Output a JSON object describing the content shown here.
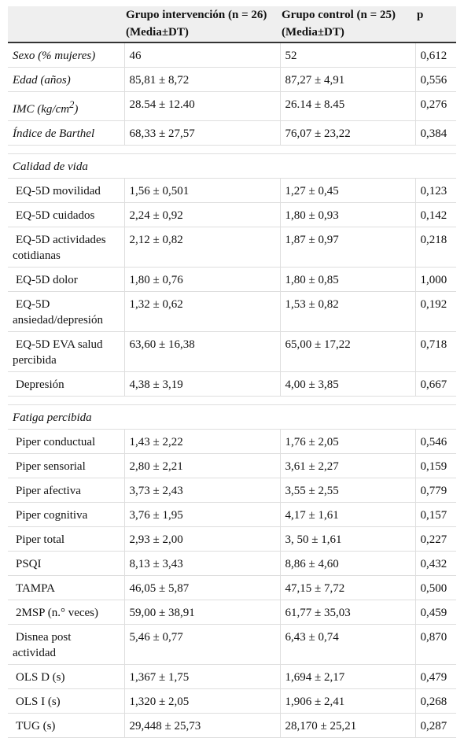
{
  "table": {
    "header": [
      [
        "Grupo intervención (n = 26)",
        "(Media±DT)"
      ],
      [
        "Grupo control (n = 25)",
        "(Media±DT)"
      ],
      [
        "p"
      ]
    ],
    "groups": [
      {
        "rows": [
          [
            "Sexo (% mujeres)",
            "46",
            "52",
            "0,612"
          ],
          [
            "Edad (años)",
            "85,81 ± 8,72",
            "87,27 ± 4,91",
            "0,556"
          ],
          [
            {
              "text": "IMC (kg/cm",
              "superscript": "2",
              "suffix": ")"
            },
            "28.54 ± 12.40",
            "26.14 ± 8.45",
            "0,276"
          ],
          [
            "Índice de Barthel",
            "68,33 ± 27,57",
            "76,07 ± 23,22",
            "0,384"
          ]
        ]
      },
      {
        "title": "Calidad de vida",
        "rows": [
          [
            "EQ-5D movilidad",
            "1,56 ± 0,501",
            "1,27 ± 0,45",
            "0,123"
          ],
          [
            "EQ-5D cuidados",
            "2,24 ± 0,92",
            "1,80 ± 0,93",
            "0,142"
          ],
          [
            "EQ-5D actividades cotidianas",
            "2,12 ± 0,82",
            "1,87 ± 0,97",
            "0,218"
          ],
          [
            "EQ-5D dolor",
            "1,80 ± 0,76",
            "1,80 ± 0,85",
            "1,000"
          ],
          [
            "EQ-5D ansiedad/depresión",
            "1,32 ± 0,62",
            "1,53 ± 0,82",
            "0,192"
          ],
          [
            "EQ-5D EVA salud percibida",
            "63,60 ± 16,38",
            "65,00 ± 17,22",
            "0,718"
          ],
          [
            "Depresión",
            "4,38 ± 3,19",
            "4,00 ± 3,85",
            "0,667"
          ]
        ]
      },
      {
        "title": "Fatiga percibida",
        "rows": [
          [
            "Piper conductual",
            "1,43 ± 2,22",
            "1,76 ± 2,05",
            "0,546"
          ],
          [
            "Piper sensorial",
            "2,80 ± 2,21",
            "3,61 ± 2,27",
            "0,159"
          ],
          [
            "Piper afectiva",
            "3,73 ± 2,43",
            "3,55 ± 2,55",
            "0,779"
          ],
          [
            "Piper cognitiva",
            "3,76 ± 1,95",
            "4,17 ± 1,61",
            "0,157"
          ],
          [
            "Piper total",
            "2,93 ± 2,00",
            "3, 50 ± 1,61",
            "0,227"
          ],
          [
            "PSQI",
            "8,13 ± 3,43",
            "8,86 ± 4,60",
            "0,432"
          ],
          [
            "TAMPA",
            "46,05 ± 5,87",
            "47,15 ± 7,72",
            "0,500"
          ],
          [
            "2MSP (n.° veces)",
            "59,00 ± 38,91",
            "61,77 ± 35,03",
            "0,459"
          ],
          [
            "Disnea post actividad",
            "5,46 ± 0,77",
            "6,43 ± 0,74",
            "0,870"
          ],
          [
            "OLS D (s)",
            "1,367 ± 1,75",
            "1,694 ± 2,17",
            "0,479"
          ],
          [
            "OLS I (s)",
            "1,320 ± 2,05",
            "1,906 ± 2,41",
            "0,268"
          ],
          [
            "TUG (s)",
            "29,448 ± 25,73",
            "28,170 ± 25,21",
            "0,287"
          ]
        ]
      }
    ]
  }
}
